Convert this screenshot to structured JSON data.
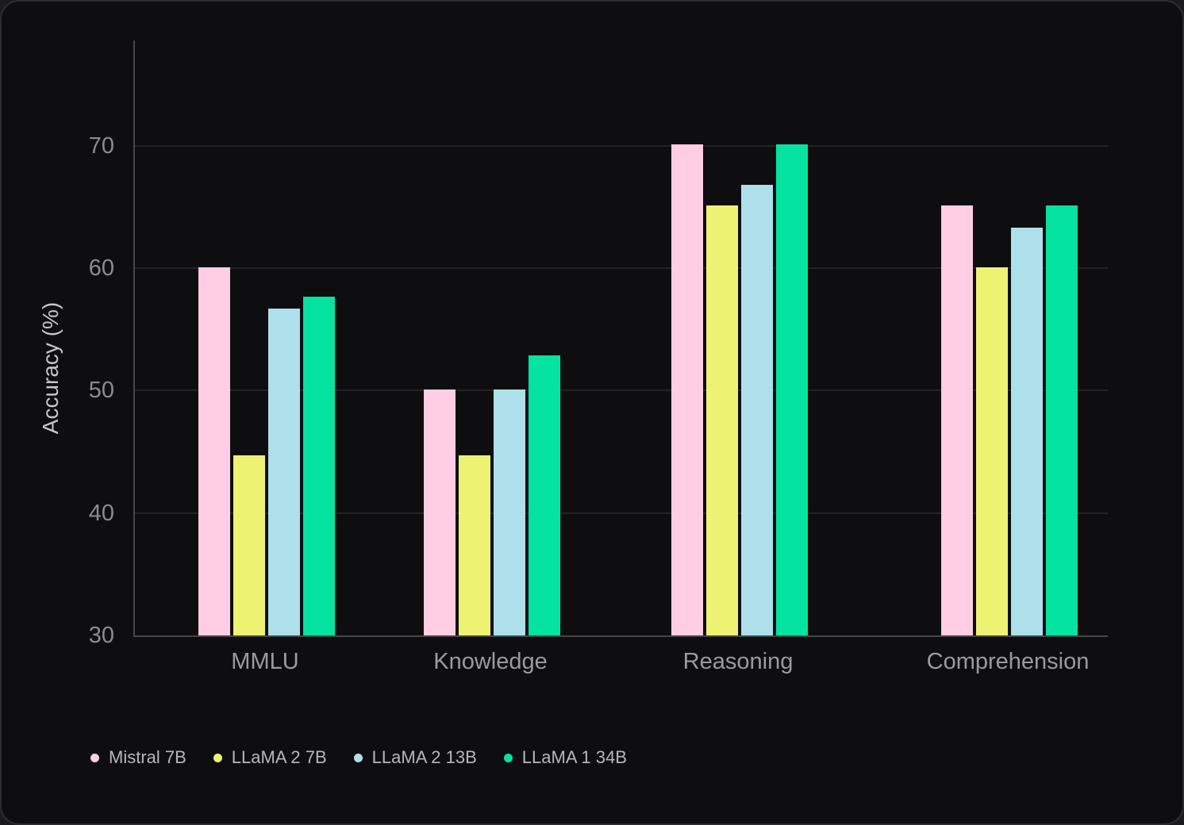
{
  "chart_data": {
    "type": "bar",
    "title": "",
    "categories": [
      "MMLU",
      "Knowledge",
      "Reasoning",
      "Comprehension"
    ],
    "series": [
      {
        "name": "Mistral 7B",
        "color": "#ffcde4",
        "values": [
          60.1,
          50.1,
          70.1,
          65.1
        ]
      },
      {
        "name": "LLaMA 2 7B",
        "color": "#eef272",
        "values": [
          44.7,
          44.7,
          65.1,
          60.1
        ]
      },
      {
        "name": "LLaMA 2 13B",
        "color": "#aee0eb",
        "values": [
          56.7,
          50.1,
          66.8,
          63.3
        ]
      },
      {
        "name": "LLaMA 1 34B",
        "color": "#04e3a0",
        "values": [
          57.7,
          52.9,
          70.1,
          65.1
        ]
      }
    ],
    "xlabel": "",
    "ylabel": "Accuracy (%)",
    "ylim": [
      30,
      78.6
    ],
    "yticks": [
      30,
      40,
      50,
      60,
      70
    ],
    "grid": true,
    "legend_position": "bottom-left"
  },
  "colors": {
    "card_background": "#0e0e10",
    "card_border": "#2c2c31",
    "gridline": "#232327",
    "axis_line": "#46464c",
    "tick_text": "#8b8b93",
    "category_text": "#9a9aa2",
    "axis_title_text": "#c6c6cc",
    "legend_text": "#b6b6bd"
  }
}
